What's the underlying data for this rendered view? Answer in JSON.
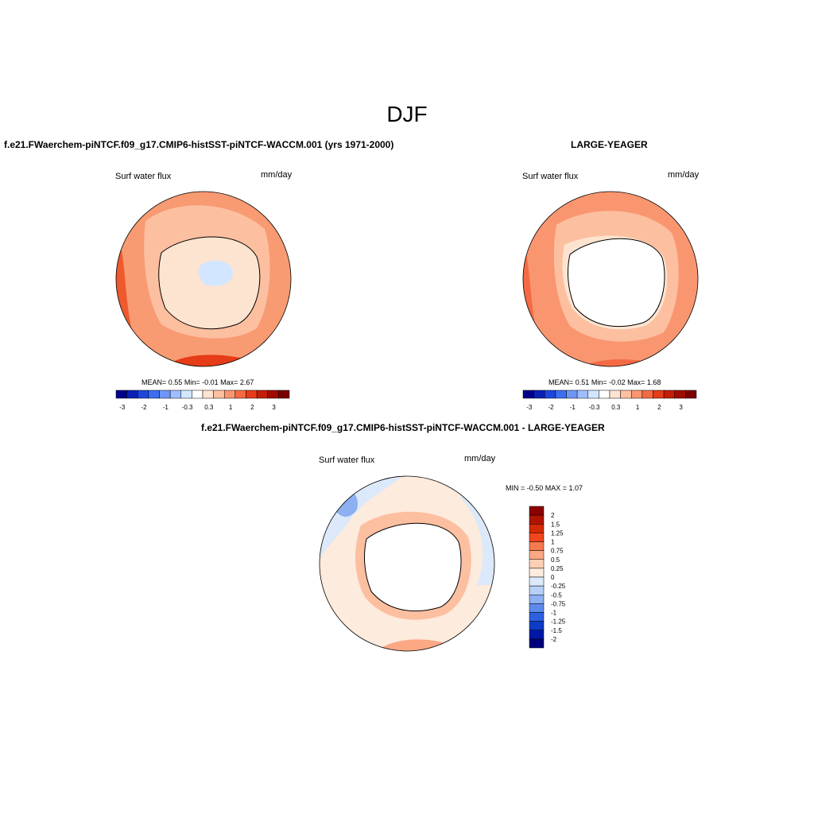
{
  "main_title": "DJF",
  "panels": [
    {
      "title": "f.e21.FWaerchem-piNTCF.f09_g17.CMIP6-histSST-piNTCF-WACCM.001 (yrs 1971-2000)",
      "variable": "Surf water flux",
      "units": "mm/day",
      "stats": {
        "mean_label": "MEAN=",
        "mean": "0.55",
        "min_label": "Min=",
        "min": "-0.01",
        "max_label": "Max=",
        "max": "2.67"
      },
      "colorbar_ticks": [
        "-3",
        "-2",
        "-1",
        "-0.3",
        "0.3",
        "1",
        "2",
        "3"
      ]
    },
    {
      "title": "LARGE-YEAGER",
      "variable": "Surf water flux",
      "units": "mm/day",
      "stats": {
        "mean_label": "MEAN=",
        "mean": "0.51",
        "min_label": "Min=",
        "min": "-0.02",
        "max_label": "Max=",
        "max": "1.68"
      },
      "colorbar_ticks": [
        "-3",
        "-2",
        "-1",
        "-0.3",
        "0.3",
        "1",
        "2",
        "3"
      ]
    }
  ],
  "diff_panel": {
    "title": "f.e21.FWaerchem-piNTCF.f09_g17.CMIP6-histSST-piNTCF-WACCM.001 - LARGE-YEAGER",
    "variable": "Surf water flux",
    "units": "mm/day",
    "minmax": "MIN =  -0.50 MAX =   1.07",
    "colorbar_labels": [
      "2",
      "1.5",
      "1.25",
      "1",
      "0.75",
      "0.5",
      "0.25",
      "0",
      "-0.25",
      "-0.5",
      "-0.75",
      "-1",
      "-1.25",
      "-1.5",
      "-2"
    ]
  },
  "colors": {
    "horizontal_scale": [
      "#00008a",
      "#0a1fb4",
      "#1e46dc",
      "#3c6ef0",
      "#6e96f5",
      "#a0beff",
      "#d2e6ff",
      "#ffffff",
      "#fde4d0",
      "#fcbfa0",
      "#f99670",
      "#f56a44",
      "#e63c18",
      "#c41e0a",
      "#a00a00",
      "#7a0000"
    ],
    "vertical_scale": [
      "#8b0000",
      "#b01400",
      "#d42a06",
      "#f2461c",
      "#f7794e",
      "#fca884",
      "#fdd0b6",
      "#fdebdd",
      "#dce9fb",
      "#b8d0f8",
      "#8cb0f2",
      "#5c8aec",
      "#2e60e2",
      "#0e3ac8",
      "#0018a6",
      "#00007c"
    ],
    "land": "#ffffff",
    "coast": "#000000"
  }
}
